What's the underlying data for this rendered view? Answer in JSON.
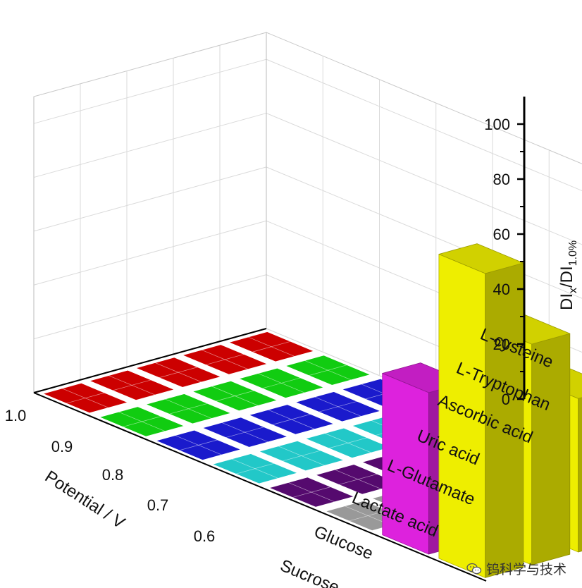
{
  "chart_data": {
    "type": "bar3d",
    "z_axis": {
      "label_main": "DI",
      "label_sub1": "x",
      "label_mid": "/DI",
      "label_sub2": "1.0%",
      "range": [
        0,
        110
      ],
      "ticks": [
        0,
        20,
        40,
        60,
        80,
        100
      ]
    },
    "potential_axis": {
      "label": "Potential / V",
      "ticks": [
        "1.0",
        "0.9",
        "0.8",
        "0.7",
        "0.6"
      ]
    },
    "analytes": [
      "Sucrose",
      "Glucose",
      "Lactate acid",
      "L-Glutamate",
      "Uric acid",
      "Ascorbic acid",
      "L-Tryptophan",
      "L-cysteine"
    ],
    "colors": [
      "#cc0000",
      "#11cc11",
      "#1a1acc",
      "#22c8c8",
      "#550a6e",
      "#999999",
      "#dd22dd",
      "#eeee00"
    ],
    "series": [
      {
        "potential": "1.0",
        "values": [
          0,
          0,
          0,
          0,
          0,
          0,
          60,
          113
        ]
      },
      {
        "potential": "0.9",
        "values": [
          0,
          0,
          0,
          0,
          0,
          0,
          12,
          82
        ]
      },
      {
        "potential": "0.8",
        "values": [
          0,
          0,
          0,
          0,
          0,
          0,
          0,
          57
        ]
      },
      {
        "potential": "0.7",
        "values": [
          0,
          0,
          0,
          0,
          0,
          0,
          0,
          23
        ]
      },
      {
        "potential": "0.6",
        "values": [
          0,
          0,
          0,
          0,
          0,
          0,
          0,
          14
        ]
      }
    ],
    "grid": true
  },
  "watermark": {
    "text": "钨科学与技术",
    "icon": "wechat-icon"
  }
}
